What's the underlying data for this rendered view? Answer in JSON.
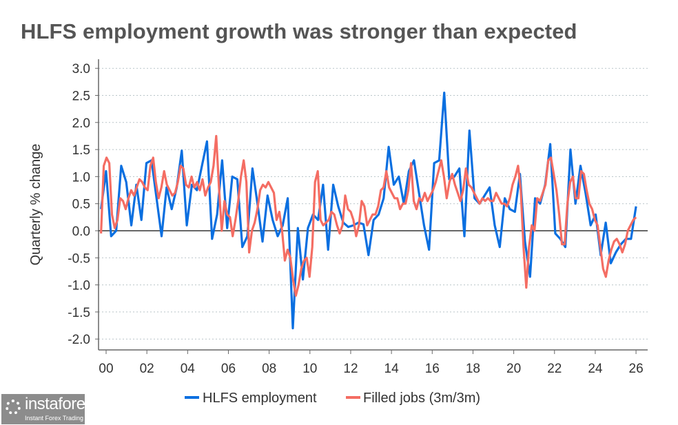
{
  "chart_data": {
    "type": "line",
    "title": "HLFS employment growth was stronger than expected",
    "xlabel": "",
    "ylabel": "Quarterly % change",
    "xlim": [
      1999.6,
      2026.6
    ],
    "ylim": [
      -2.2,
      3.2
    ],
    "yticks": [
      3.0,
      2.5,
      2.0,
      1.5,
      1.0,
      0.5,
      0.0,
      -0.5,
      -1.0,
      -1.5,
      -2.0
    ],
    "ytick_labels": [
      "3.0",
      "2.5",
      "2.0",
      "1.5",
      "1.0",
      "0.5",
      "0.0",
      "-0.5",
      "-1.0",
      "-1.5",
      "-2.0"
    ],
    "xticks": [
      2000,
      2002,
      2004,
      2006,
      2008,
      2010,
      2012,
      2014,
      2016,
      2018,
      2020,
      2022,
      2024,
      2026
    ],
    "xtick_labels": [
      "00",
      "02",
      "04",
      "06",
      "08",
      "10",
      "12",
      "14",
      "16",
      "18",
      "20",
      "22",
      "24",
      "26"
    ],
    "grid": "horizontal dotted",
    "legend_position": "bottom-center",
    "series": [
      {
        "name": "HLFS employment",
        "color": "#0a6fe0",
        "start": 1999.75,
        "end": 2026.0,
        "values": [
          0.4,
          1.1,
          -0.1,
          0.0,
          1.2,
          0.9,
          0.1,
          0.85,
          0.2,
          1.25,
          1.3,
          0.6,
          -0.1,
          0.8,
          0.4,
          0.8,
          1.48,
          0.1,
          0.85,
          0.75,
          1.2,
          1.65,
          -0.15,
          0.3,
          1.3,
          0.05,
          1.0,
          0.95,
          -0.3,
          -0.1,
          1.15,
          0.5,
          -0.2,
          0.65,
          0.2,
          -0.1,
          0.1,
          0.6,
          -1.8,
          0.05,
          -0.9,
          0.05,
          0.3,
          0.2,
          0.85,
          -0.35,
          0.85,
          0.45,
          0.15,
          0.07,
          0.1,
          0.15,
          0.12,
          -0.45,
          0.2,
          0.3,
          0.6,
          1.55,
          0.85,
          1.0,
          0.5,
          1.1,
          1.3,
          0.7,
          0.1,
          -0.35,
          1.25,
          1.3,
          2.55,
          0.95,
          1.0,
          1.15,
          -0.1,
          1.85,
          0.6,
          0.5,
          0.65,
          0.8,
          0.1,
          -0.3,
          0.6,
          0.4,
          0.35,
          1.05,
          -0.2,
          -0.85,
          0.6,
          0.5,
          0.85,
          1.6,
          -0.05,
          -0.15,
          -0.3,
          1.5,
          0.5,
          1.2,
          0.7,
          0.1,
          0.3,
          -0.45,
          0.15,
          -0.6,
          -0.4,
          -0.25,
          -0.15,
          -0.15,
          0.45
        ]
      },
      {
        "name": "Filled jobs (3m/3m)",
        "color": "#f46d63",
        "start": 1999.75,
        "end": 2026.0,
        "values": [
          -0.05,
          1.2,
          1.35,
          1.25,
          0.3,
          0.05,
          0.2,
          0.6,
          0.55,
          0.4,
          0.6,
          0.75,
          0.65,
          0.8,
          0.95,
          0.9,
          0.8,
          0.75,
          1.2,
          1.35,
          0.9,
          0.6,
          0.8,
          1.1,
          0.85,
          0.75,
          0.65,
          0.7,
          0.9,
          1.2,
          1.15,
          0.85,
          0.8,
          1.0,
          0.8,
          0.9,
          0.75,
          0.95,
          0.65,
          0.8,
          0.9,
          1.2,
          1.75,
          0.8,
          0.0,
          0.55,
          0.3,
          0.25,
          -0.1,
          0.2,
          0.55,
          1.0,
          1.3,
          0.9,
          -0.4,
          0.0,
          0.15,
          0.4,
          0.75,
          0.85,
          0.8,
          0.9,
          0.8,
          0.7,
          0.2,
          0.35,
          0.0,
          -0.55,
          -0.35,
          -0.5,
          -0.9,
          -1.2,
          -1.0,
          -0.7,
          -0.55,
          -0.5,
          -0.85,
          -0.3,
          0.9,
          1.1,
          0.2,
          0.1,
          0.15,
          0.2,
          0.35,
          0.3,
          0.1,
          -0.05,
          0.1,
          0.65,
          0.4,
          0.35,
          0.2,
          -0.1,
          0.1,
          0.55,
          0.45,
          0.1,
          0.2,
          0.3,
          0.3,
          0.45,
          0.75,
          0.8,
          1.1,
          0.8,
          0.7,
          0.6,
          0.6,
          0.4,
          0.5,
          0.5,
          0.75,
          1.25,
          0.55,
          0.4,
          0.6,
          0.55,
          0.7,
          0.55,
          0.65,
          0.75,
          0.9,
          1.1,
          1.3,
          1.0,
          0.6,
          0.9,
          1.05,
          0.85,
          0.7,
          0.55,
          0.75,
          1.15,
          0.85,
          0.8,
          0.7,
          0.6,
          0.5,
          0.6,
          0.55,
          0.6,
          0.55,
          0.55,
          0.7,
          0.6,
          0.5,
          0.5,
          0.45,
          0.6,
          0.85,
          1.0,
          1.2,
          0.75,
          -0.3,
          -1.05,
          -0.3,
          0.1,
          0.0,
          0.6,
          0.55,
          0.7,
          0.85,
          1.3,
          1.35,
          1.05,
          0.75,
          0.3,
          -0.25,
          -0.25,
          0.5,
          0.9,
          1.0,
          0.6,
          0.6,
          1.1,
          1.05,
          0.75,
          0.5,
          0.4,
          0.2,
          0.1,
          -0.3,
          -0.7,
          -0.85,
          -0.55,
          -0.35,
          -0.2,
          -0.15,
          -0.25,
          -0.4,
          -0.25,
          0.0,
          0.1,
          0.2,
          0.25
        ]
      }
    ]
  },
  "branding": {
    "logo_name": "instaforex",
    "logo_tagline": "Instant Forex Trading"
  }
}
